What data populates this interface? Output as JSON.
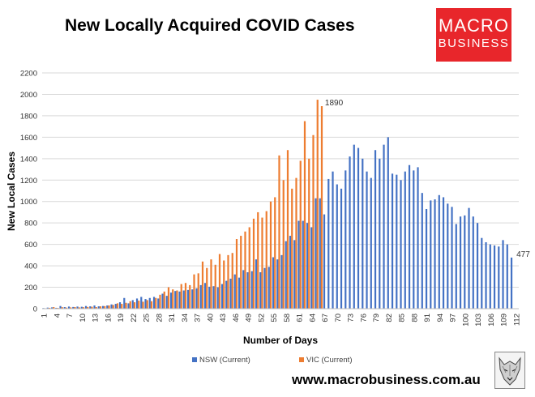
{
  "title": "New Locally Acquired COVID Cases",
  "logo": {
    "line1": "MACRO",
    "line2": "BUSINESS"
  },
  "website": "www.macrobusiness.com.au",
  "chart_data": {
    "type": "bar",
    "title": "New Locally Acquired COVID Cases",
    "xlabel": "Number of Days",
    "ylabel": "New Local Cases",
    "ylim": [
      0,
      2200
    ],
    "yticks": [
      0,
      200,
      400,
      600,
      800,
      1000,
      1200,
      1400,
      1600,
      1800,
      2000,
      2200
    ],
    "x_tick_labels": [
      1,
      4,
      7,
      10,
      13,
      16,
      19,
      22,
      25,
      28,
      31,
      34,
      37,
      40,
      43,
      46,
      49,
      52,
      55,
      58,
      61,
      64,
      67,
      70,
      73,
      76,
      79,
      82,
      85,
      88,
      91,
      94,
      97,
      100,
      103,
      106,
      109,
      112
    ],
    "grid": true,
    "legend_position": "bottom",
    "annotations": [
      {
        "series": "VIC (Current)",
        "day": 66,
        "text": "1890"
      },
      {
        "series": "NSW (Current)",
        "day": 111,
        "text": "477"
      }
    ],
    "series": [
      {
        "name": "NSW (Current)",
        "color": "#4472c4",
        "start_day": 1,
        "values": [
          6,
          10,
          12,
          8,
          25,
          15,
          20,
          16,
          20,
          18,
          25,
          22,
          30,
          22,
          25,
          30,
          40,
          45,
          60,
          100,
          50,
          80,
          95,
          110,
          90,
          100,
          110,
          95,
          140,
          120,
          150,
          165,
          160,
          170,
          175,
          180,
          190,
          220,
          240,
          205,
          210,
          200,
          230,
          260,
          280,
          320,
          290,
          360,
          340,
          350,
          460,
          340,
          380,
          390,
          480,
          460,
          500,
          630,
          680,
          640,
          820,
          820,
          800,
          760,
          1030,
          1030,
          880,
          1210,
          1280,
          1160,
          1120,
          1290,
          1420,
          1530,
          1500,
          1400,
          1280,
          1220,
          1480,
          1400,
          1530,
          1600,
          1260,
          1250,
          1200,
          1280,
          1340,
          1290,
          1320,
          1080,
          930,
          1010,
          1020,
          1060,
          1040,
          980,
          950,
          790,
          860,
          870,
          940,
          860,
          800,
          660,
          620,
          600,
          590,
          580,
          640,
          600,
          477
        ]
      },
      {
        "name": "VIC (Current)",
        "color": "#ed7d31",
        "start_day": 1,
        "values": [
          4,
          8,
          15,
          7,
          14,
          10,
          12,
          15,
          12,
          14,
          16,
          18,
          15,
          22,
          24,
          30,
          35,
          50,
          45,
          55,
          70,
          60,
          75,
          65,
          80,
          70,
          100,
          130,
          160,
          200,
          180,
          170,
          230,
          240,
          220,
          320,
          330,
          440,
          380,
          460,
          410,
          510,
          450,
          500,
          520,
          650,
          680,
          720,
          760,
          840,
          900,
          850,
          910,
          1000,
          1040,
          1430,
          1200,
          1480,
          1120,
          1220,
          1380,
          1750,
          1400,
          1620,
          1950,
          1890
        ]
      }
    ]
  }
}
